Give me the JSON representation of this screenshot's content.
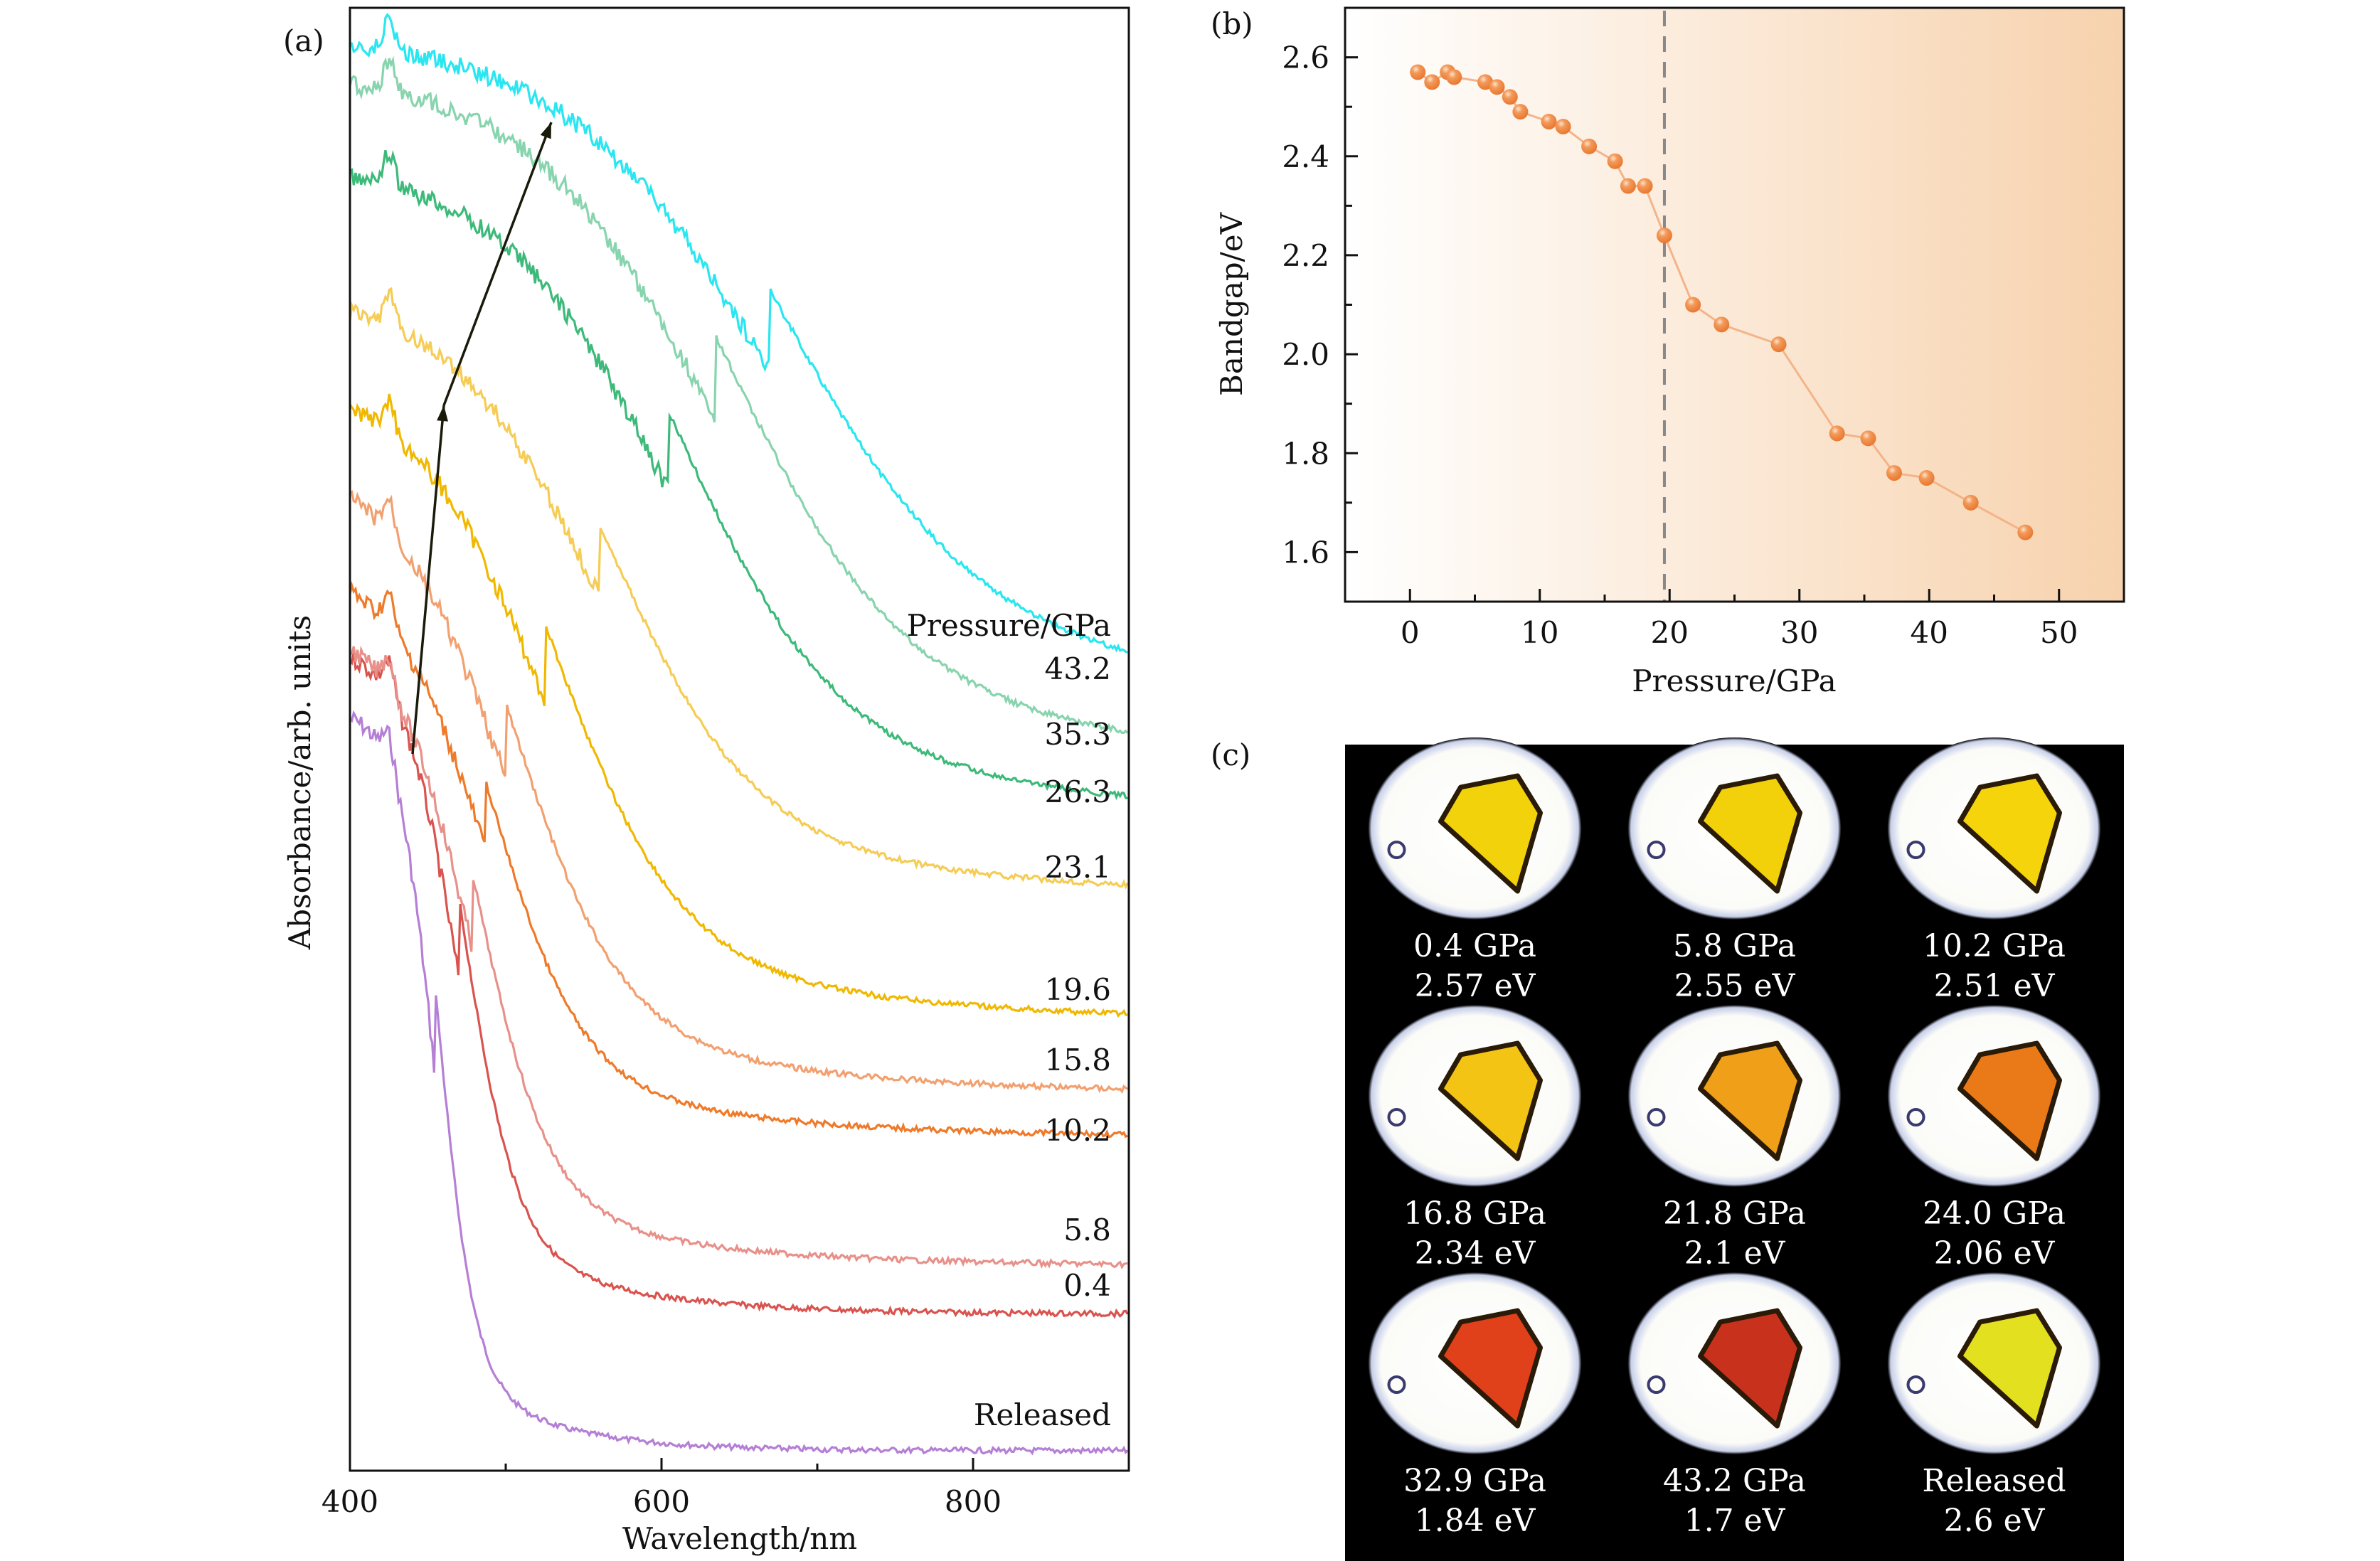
{
  "chart_data": [
    {
      "panel": "(a)",
      "type": "line",
      "title": "",
      "xlabel": "Wavelength/nm",
      "ylabel": "Absorbance/arb. units",
      "xlim": [
        400,
        900
      ],
      "xticks": [
        400,
        600,
        800
      ],
      "xminor_ticks": [
        500,
        700,
        900
      ],
      "yticks": [],
      "legend_title": "Pressure/GPa",
      "legend_placement": "right, labels beside each curve",
      "annotation": "arrows marking absorption edge shift with pressure",
      "series": [
        {
          "name": "Released",
          "color": "#b57fd6",
          "edge_nm": 455,
          "offset": 0.0
        },
        {
          "name": "0.4",
          "color": "#d9534f",
          "edge_nm": 470,
          "offset": 1.0
        },
        {
          "name": "5.8",
          "color": "#e8908a",
          "edge_nm": 478,
          "offset": 1.3
        },
        {
          "name": "10.2",
          "color": "#ee7a2a",
          "edge_nm": 487,
          "offset": 2.1
        },
        {
          "name": "15.8",
          "color": "#f2a070",
          "edge_nm": 500,
          "offset": 2.5
        },
        {
          "name": "19.6",
          "color": "#f0b800",
          "edge_nm": 525,
          "offset": 2.9
        },
        {
          "name": "23.1",
          "color": "#f5cc55",
          "edge_nm": 560,
          "offset": 3.6
        },
        {
          "name": "26.3",
          "color": "#3dba7a",
          "edge_nm": 605,
          "offset": 4.1
        },
        {
          "name": "35.3",
          "color": "#88d4ae",
          "edge_nm": 635,
          "offset": 4.4
        },
        {
          "name": "43.2",
          "color": "#2ae6f0",
          "edge_nm": 670,
          "offset": 4.8
        }
      ]
    },
    {
      "panel": "(b)",
      "type": "scatter",
      "title": "",
      "xlabel": "Pressure/GPa",
      "ylabel": "Bandgap/eV",
      "xlim": [
        -5,
        55
      ],
      "ylim": [
        1.5,
        2.7
      ],
      "xticks": [
        0,
        10,
        20,
        30,
        40,
        50
      ],
      "yticks": [
        1.6,
        1.8,
        2.0,
        2.2,
        2.4,
        2.6
      ],
      "grid": false,
      "marker_color": "#f08a45",
      "line_color": "#f3b48a",
      "background_gradient": [
        "#ffffff",
        "#f7d2ad"
      ],
      "dashed_line_x": 19.6,
      "x": [
        0.6,
        1.7,
        2.9,
        3.4,
        5.8,
        6.7,
        7.7,
        8.5,
        10.7,
        11.8,
        13.8,
        15.8,
        16.8,
        18.1,
        19.6,
        21.8,
        24.0,
        28.4,
        32.9,
        35.3,
        37.3,
        39.8,
        43.2,
        47.4
      ],
      "y": [
        2.57,
        2.55,
        2.57,
        2.56,
        2.55,
        2.54,
        2.52,
        2.49,
        2.47,
        2.46,
        2.42,
        2.39,
        2.34,
        2.34,
        2.24,
        2.1,
        2.06,
        2.02,
        1.84,
        1.83,
        1.76,
        1.75,
        1.7,
        1.64
      ]
    }
  ],
  "panels": {
    "a_label": "(a)",
    "b_label": "(b)",
    "c_label": "(c)"
  },
  "photos": [
    {
      "pressure": "0.4 GPa",
      "bandgap": "2.57 eV",
      "crystal_color": "#f2d20a"
    },
    {
      "pressure": "5.8 GPa",
      "bandgap": "2.55 eV",
      "crystal_color": "#f2d00a"
    },
    {
      "pressure": "10.2 GPa",
      "bandgap": "2.51 eV",
      "crystal_color": "#f5d40c"
    },
    {
      "pressure": "16.8 GPa",
      "bandgap": "2.34 eV",
      "crystal_color": "#f3c414"
    },
    {
      "pressure": "21.8 GPa",
      "bandgap": "2.1 eV",
      "crystal_color": "#f0a018"
    },
    {
      "pressure": "24.0 GPa",
      "bandgap": "2.06 eV",
      "crystal_color": "#ea7a18"
    },
    {
      "pressure": "32.9 GPa",
      "bandgap": "1.84 eV",
      "crystal_color": "#e0401a"
    },
    {
      "pressure": "43.2 GPa",
      "bandgap": "1.7 eV",
      "crystal_color": "#c8321c"
    },
    {
      "pressure": "Released",
      "bandgap": "2.6 eV",
      "crystal_color": "#e3e020"
    }
  ]
}
